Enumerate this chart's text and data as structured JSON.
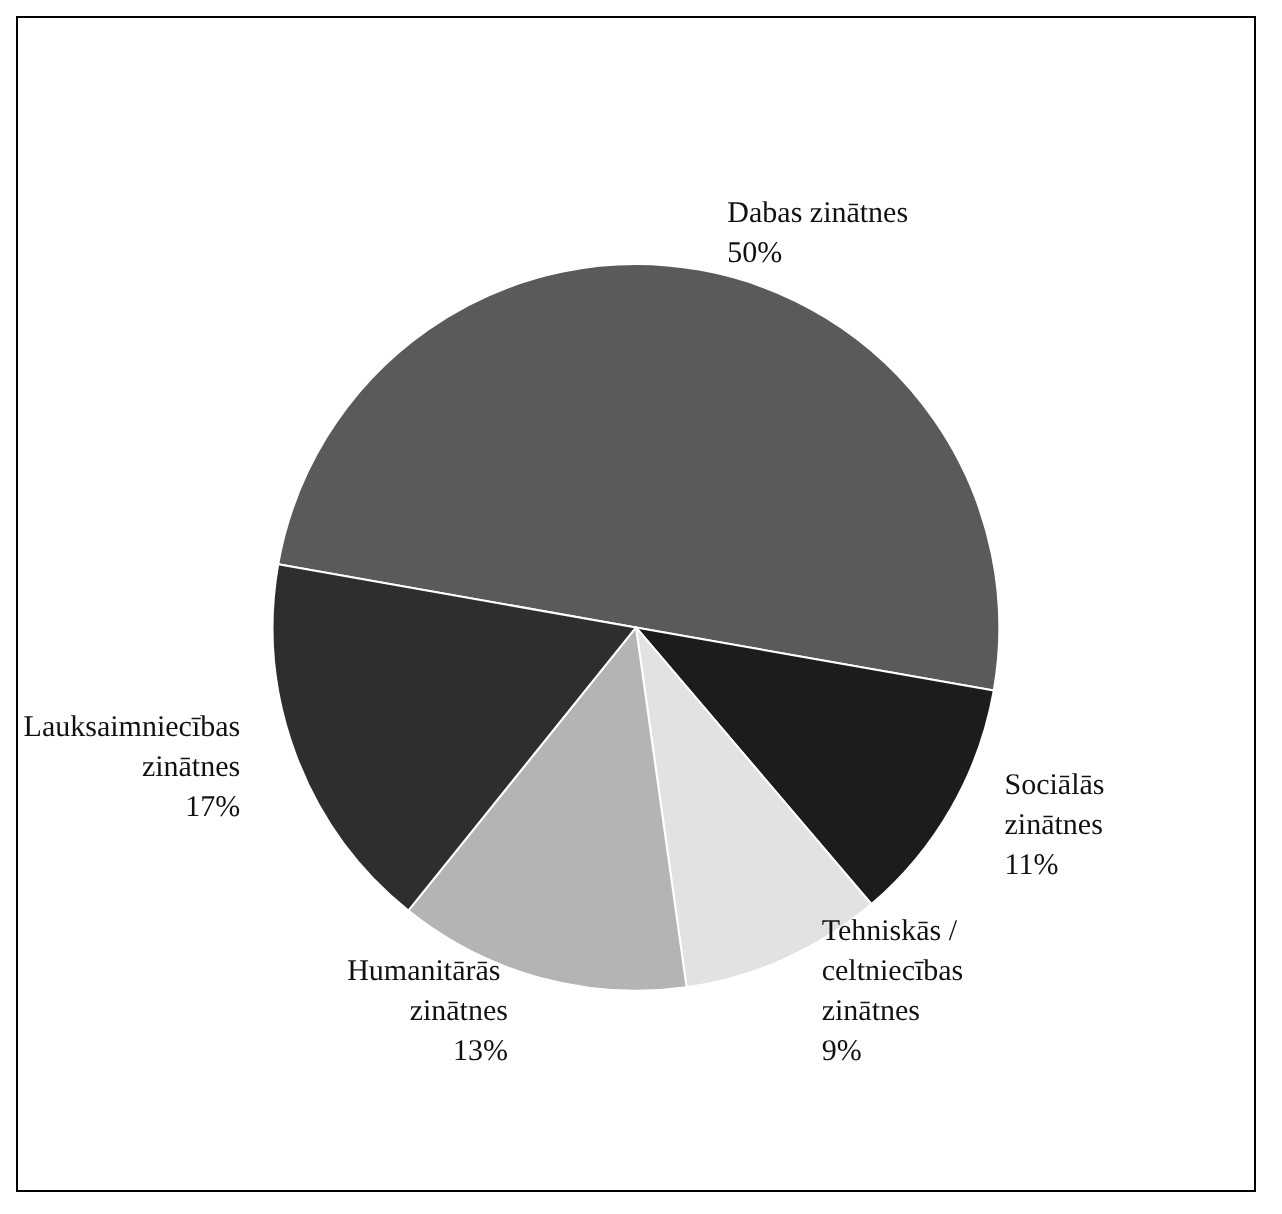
{
  "chart_data": {
    "type": "pie",
    "categories": [
      "Dabas zinātnes",
      "Sociālās zinātnes",
      "Tehniskās / celtniecības zinātnes",
      "Humanitārās zinātnes",
      "Lauksaimniecības zinātnes"
    ],
    "values": [
      50,
      11,
      9,
      13,
      17
    ],
    "colors": [
      "#5a5a5a",
      "#1c1c1c",
      "#e2e2e2",
      "#b4b4b4",
      "#2e2e2e"
    ],
    "value_labels": [
      "50%",
      "11%",
      "9%",
      "13%",
      "17%"
    ],
    "legend": false
  }
}
